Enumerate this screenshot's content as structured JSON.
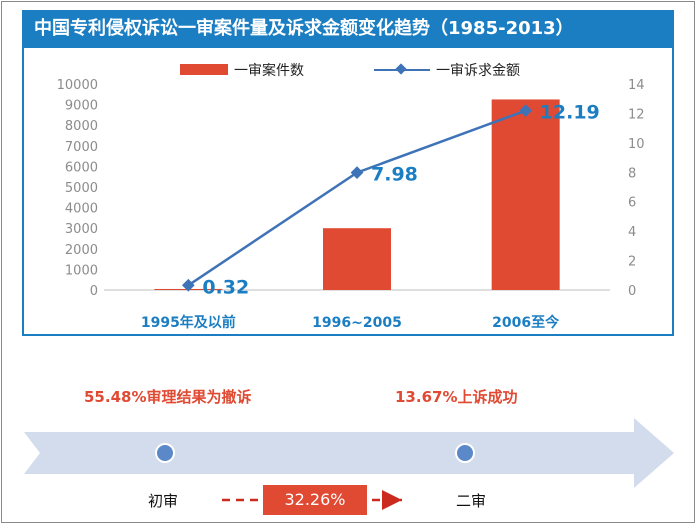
{
  "title": "中国专利侵权诉讼一审案件量及诉求金额变化趋势（1985-2013）",
  "legend": {
    "bar_label": "一审案件数",
    "line_label": "一审诉求金额",
    "bar_color": "#e04a33",
    "line_color": "#3f73b8"
  },
  "chart_data": {
    "type": "bar",
    "categories": [
      "1995年及以前",
      "1996~2005",
      "2006至今"
    ],
    "series": [
      {
        "name": "一审案件数",
        "type": "bar",
        "axis": "left",
        "values": [
          50,
          3000,
          9250
        ]
      },
      {
        "name": "一审诉求金额",
        "type": "line",
        "axis": "right",
        "values": [
          0.32,
          7.98,
          12.19
        ]
      }
    ],
    "data_labels": [
      "0.32",
      "7.98",
      "12.19"
    ],
    "left_axis": {
      "range": [
        0,
        10000
      ],
      "ticks": [
        "0",
        "1000",
        "2000",
        "3000",
        "4000",
        "5000",
        "6000",
        "7000",
        "8000",
        "9000",
        "10000"
      ]
    },
    "right_axis": {
      "range": [
        0,
        14
      ],
      "ticks": [
        "0",
        "2",
        "4",
        "6",
        "8",
        "10",
        "12",
        "14"
      ]
    },
    "legend_position": "top"
  },
  "bottom": {
    "stat_left": "55.48%审理结果为撤诉",
    "stat_right": "13.67%上诉成功",
    "node_left": "初审",
    "node_right": "二审",
    "pct": "32.26%"
  }
}
